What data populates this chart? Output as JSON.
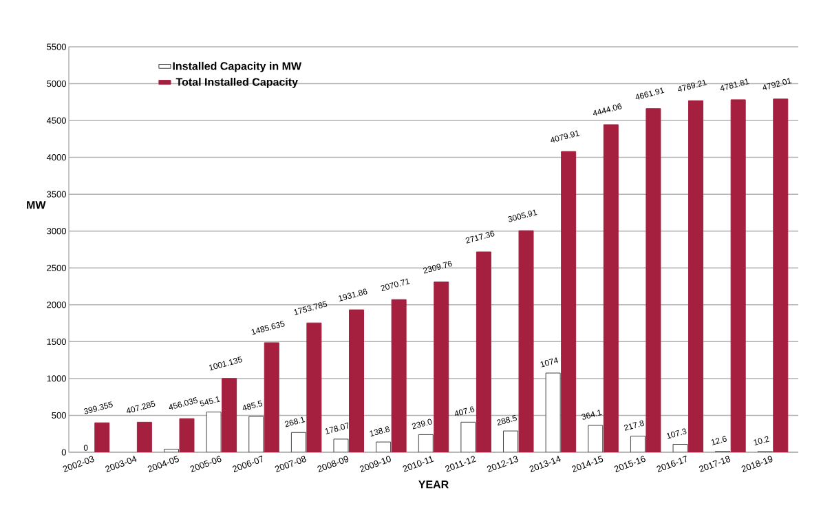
{
  "chart_data": {
    "type": "bar",
    "xlabel": "YEAR",
    "ylabel": "MW",
    "categories": [
      "2002-03",
      "2003-04",
      "2004-05",
      "2005-06",
      "2006-07",
      "2007-08",
      "2008-09",
      "2009-10",
      "2010-11",
      "2011-12",
      "2012-13",
      "2013-14",
      "2014-15",
      "2015-16",
      "2016-17",
      "2017-18",
      "2018-19"
    ],
    "series": [
      {
        "name": "Installed Capacity in MW",
        "color": "#ffffff",
        "values": [
          0,
          null,
          40,
          545.1,
          485.5,
          268.1,
          178.07,
          138.8,
          239.0,
          407.6,
          288.5,
          1074,
          364.1,
          217.8,
          107.3,
          12.6,
          10.2
        ],
        "value_labels": [
          "0",
          null,
          null,
          "545.1",
          "485.5",
          "268.1",
          "178.07",
          "138.8",
          "239.0",
          "407.6",
          "288.5",
          "1074",
          "364.1",
          "217.8",
          "107.3",
          "12.6",
          "10.2"
        ]
      },
      {
        "name": "Total Installed Capacity",
        "color": "#a51f3f",
        "values": [
          399.355,
          407.285,
          456.035,
          1001.135,
          1485.635,
          1753.785,
          1931.86,
          2070.71,
          2309.76,
          2717.36,
          3005.91,
          4079.91,
          4444.06,
          4661.91,
          4769.21,
          4781.81,
          4792.01
        ],
        "value_labels": [
          "399.355",
          "407.285",
          "456.035",
          "1001.135",
          "1485.635",
          "1753.785",
          "1931.86",
          "2070.71",
          "2309.76",
          "2717.36",
          "3005.91",
          "4079.91",
          "4444.06",
          "4661.91",
          "4769.21",
          "4781.81",
          "4792.01"
        ]
      }
    ],
    "ylim": [
      0,
      5500
    ],
    "yticks": [
      0,
      500,
      1000,
      1500,
      2000,
      2500,
      3000,
      3500,
      4000,
      4500,
      5000,
      5500
    ],
    "grid": "y",
    "legend": "top left"
  }
}
